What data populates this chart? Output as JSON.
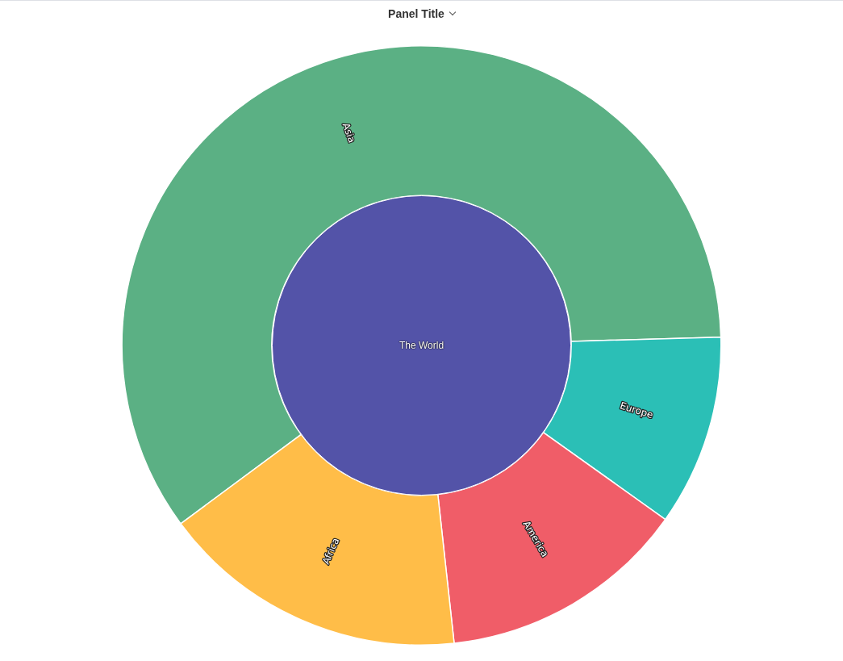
{
  "chart_data": {
    "type": "donut",
    "title": "Panel Title",
    "categories": [
      "Asia",
      "Europe",
      "America",
      "Africa"
    ],
    "values": [
      59.7,
      10.3,
      13.4,
      16.6
    ],
    "colors": [
      "#5bb084",
      "#2bbfb6",
      "#f05d68",
      "#ffbd48"
    ],
    "annotations": [
      "The World"
    ],
    "legend": false
  }
}
